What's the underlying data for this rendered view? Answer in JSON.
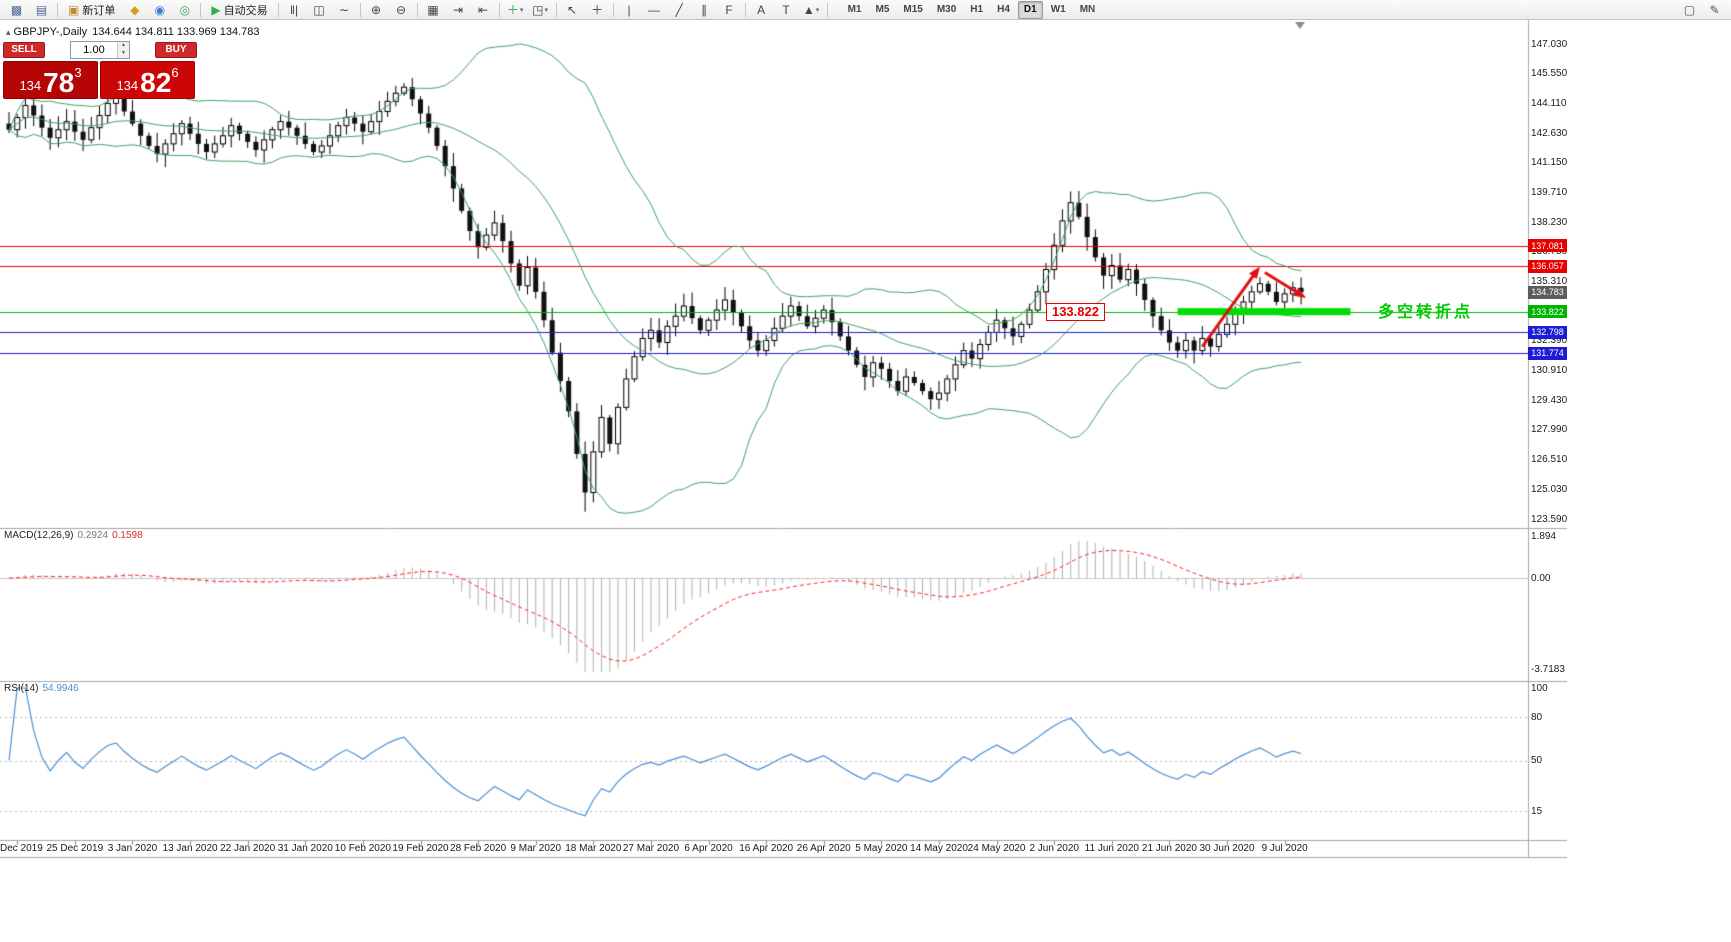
{
  "toolbar": {
    "items": [
      {
        "t": "icon",
        "name": "new-chart-icon",
        "g": "▩",
        "c": "#4a6496"
      },
      {
        "t": "icon",
        "name": "profiles-icon",
        "g": "▤",
        "c": "#4a6496"
      },
      {
        "t": "sep"
      },
      {
        "t": "button",
        "name": "new-order-button",
        "g": "▣",
        "c": "#c08a2d",
        "label": "新订单"
      },
      {
        "t": "icon",
        "name": "mql5-market-icon",
        "g": "◆",
        "c": "#d7a019"
      },
      {
        "t": "icon",
        "name": "community-icon",
        "g": "◉",
        "c": "#3a7bd5"
      },
      {
        "t": "icon",
        "name": "virtual-hosting-icon",
        "g": "◎",
        "c": "#3aa55f"
      },
      {
        "t": "sep"
      },
      {
        "t": "button",
        "name": "auto-trading-button",
        "g": "▶",
        "c": "#2fae4a",
        "label": "自动交易"
      },
      {
        "t": "sep"
      },
      {
        "t": "icon",
        "name": "bar-chart-icon",
        "g": "‖|",
        "c": "#444444"
      },
      {
        "t": "icon",
        "name": "candlestick-chart-icon",
        "g": "◫",
        "c": "#444444"
      },
      {
        "t": "icon",
        "name": "line-chart-icon",
        "g": "∼",
        "c": "#444444"
      },
      {
        "t": "sep"
      },
      {
        "t": "icon",
        "name": "zoom-in-icon",
        "g": "⊕",
        "c": "#444444"
      },
      {
        "t": "icon",
        "name": "zoom-out-icon",
        "g": "⊖",
        "c": "#444444"
      },
      {
        "t": "sep"
      },
      {
        "t": "icon",
        "name": "tile-windows-icon",
        "g": "▦",
        "c": "#444444"
      },
      {
        "t": "icon",
        "name": "auto-scroll-icon",
        "g": "⇥",
        "c": "#444444"
      },
      {
        "t": "icon",
        "name": "chart-shift-icon",
        "g": "⇤",
        "c": "#444444"
      },
      {
        "t": "sep"
      },
      {
        "t": "icon",
        "name": "indicators-icon",
        "g": "＋",
        "c": "#2fae4a",
        "dd": true
      },
      {
        "t": "icon",
        "name": "objects-icon",
        "g": "◳",
        "c": "#444444",
        "dd": true
      },
      {
        "t": "sep"
      },
      {
        "t": "icon",
        "name": "cursor-icon",
        "g": "↖",
        "c": "#444444"
      },
      {
        "t": "icon",
        "name": "crosshair-icon",
        "g": "＋",
        "c": "#444444"
      },
      {
        "t": "sep"
      },
      {
        "t": "icon",
        "name": "vertical-line-icon",
        "g": "|",
        "c": "#444444"
      },
      {
        "t": "icon",
        "name": "horizontal-line-icon",
        "g": "—",
        "c": "#444444"
      },
      {
        "t": "icon",
        "name": "trendline-icon",
        "g": "╱",
        "c": "#444444"
      },
      {
        "t": "icon",
        "name": "channel-icon",
        "g": "∥",
        "c": "#444444"
      },
      {
        "t": "icon",
        "name": "fibonacci-icon",
        "g": "F",
        "c": "#444444"
      },
      {
        "t": "sep"
      },
      {
        "t": "icon",
        "name": "text-icon",
        "g": "A",
        "c": "#444444"
      },
      {
        "t": "icon",
        "name": "label-icon",
        "g": "T",
        "c": "#444444"
      },
      {
        "t": "icon",
        "name": "arrows-icon",
        "g": "▲",
        "c": "#444444",
        "dd": true
      },
      {
        "t": "sep"
      }
    ],
    "timeframes": [
      "M1",
      "M5",
      "M15",
      "M30",
      "H1",
      "H4",
      "D1",
      "W1",
      "MN"
    ],
    "active_timeframe": "D1",
    "right_icons": [
      {
        "name": "new-window-icon",
        "g": "▢",
        "c": "#555555"
      },
      {
        "name": "edit-cursor-icon",
        "g": "✎",
        "c": "#555555"
      }
    ]
  },
  "chart": {
    "symbol_period": "GBPJPY-,Daily",
    "ohlc_line": "134.644 134.811 133.969 134.783"
  },
  "trade_panel": {
    "sell_label": "SELL",
    "buy_label": "BUY",
    "volume": "1.00",
    "sell_price": {
      "big_figure": "134",
      "pips": "78",
      "point": "3"
    },
    "buy_price": {
      "big_figure": "134",
      "pips": "82",
      "point": "6"
    }
  },
  "price_axis": {
    "labels": [
      "147.030",
      "145.550",
      "144.110",
      "142.630",
      "141.150",
      "139.710",
      "138.230",
      "136.750",
      "135.310",
      "133.870",
      "132.390",
      "130.910",
      "129.430",
      "127.990",
      "126.510",
      "125.030",
      "123.590"
    ]
  },
  "chart_data": {
    "type": "candlestick",
    "symbol": "GBPJPY-",
    "timeframe": "Daily",
    "ohlc_display": {
      "open": "134.644",
      "high": "134.811",
      "low": "133.969",
      "close": "134.783"
    },
    "y_axis": {
      "min": 123.59,
      "max": 147.03
    },
    "x_ticks": [
      {
        "label": "5 Dec 2019",
        "index": 1
      },
      {
        "label": "25 Dec 2019",
        "index": 8
      },
      {
        "label": "3 Jan 2020",
        "index": 15
      },
      {
        "label": "13 Jan 2020",
        "index": 22
      },
      {
        "label": "22 Jan 2020",
        "index": 29
      },
      {
        "label": "31 Jan 2020",
        "index": 36
      },
      {
        "label": "10 Feb 2020",
        "index": 43
      },
      {
        "label": "19 Feb 2020",
        "index": 50
      },
      {
        "label": "28 Feb 2020",
        "index": 57
      },
      {
        "label": "9 Mar 2020",
        "index": 64
      },
      {
        "label": "18 Mar 2020",
        "index": 71
      },
      {
        "label": "27 Mar 2020",
        "index": 78
      },
      {
        "label": "6 Apr 2020",
        "index": 85
      },
      {
        "label": "16 Apr 2020",
        "index": 92
      },
      {
        "label": "26 Apr 2020",
        "index": 99
      },
      {
        "label": "5 May 2020",
        "index": 106
      },
      {
        "label": "14 May 2020",
        "index": 113
      },
      {
        "label": "24 May 2020",
        "index": 120
      },
      {
        "label": "2 Jun 2020",
        "index": 127
      },
      {
        "label": "11 Jun 2020",
        "index": 134
      },
      {
        "label": "21 Jun 2020",
        "index": 141
      },
      {
        "label": "30 Jun 2020",
        "index": 148
      },
      {
        "label": "9 Jul 2020",
        "index": 155
      }
    ],
    "closes": [
      142.8,
      143.4,
      144.0,
      143.5,
      142.9,
      142.4,
      142.8,
      143.2,
      142.7,
      142.3,
      142.9,
      143.5,
      144.1,
      144.4,
      143.7,
      143.1,
      142.5,
      142.0,
      141.6,
      142.1,
      142.6,
      143.1,
      142.6,
      142.1,
      141.7,
      142.1,
      142.5,
      143.0,
      142.6,
      142.2,
      141.8,
      142.3,
      142.8,
      143.2,
      142.9,
      142.5,
      142.1,
      141.7,
      142.0,
      142.5,
      143.0,
      143.4,
      143.1,
      142.7,
      143.2,
      143.7,
      144.2,
      144.6,
      144.9,
      144.3,
      143.6,
      142.9,
      142.0,
      141.0,
      139.9,
      138.8,
      137.8,
      137.0,
      137.6,
      138.2,
      137.3,
      136.2,
      135.1,
      136.0,
      134.8,
      133.4,
      131.8,
      130.4,
      128.9,
      126.8,
      124.9,
      126.9,
      128.6,
      127.3,
      129.1,
      130.5,
      131.6,
      132.5,
      132.9,
      132.3,
      133.1,
      133.6,
      134.1,
      133.5,
      132.9,
      133.4,
      133.9,
      134.4,
      133.8,
      133.1,
      132.4,
      131.9,
      132.4,
      133.0,
      133.6,
      134.1,
      133.6,
      133.1,
      133.5,
      133.9,
      133.3,
      132.6,
      131.9,
      131.2,
      130.6,
      131.3,
      131.0,
      130.4,
      129.9,
      130.6,
      130.3,
      129.9,
      129.5,
      129.8,
      130.5,
      131.2,
      131.9,
      131.5,
      132.2,
      132.8,
      133.4,
      133.0,
      132.6,
      133.2,
      133.9,
      134.8,
      135.9,
      137.1,
      138.3,
      139.2,
      138.5,
      137.5,
      136.5,
      135.6,
      136.1,
      135.4,
      135.9,
      135.2,
      134.4,
      133.6,
      132.9,
      132.3,
      131.9,
      132.4,
      131.9,
      132.5,
      132.1,
      132.7,
      133.2,
      133.8,
      134.3,
      134.8,
      135.2,
      134.8,
      134.3,
      134.7,
      135.0,
      134.78
    ],
    "wick_overrides": {
      "13": {
        "high": 144.95
      },
      "48": {
        "high": 145.1
      },
      "70": {
        "low": 123.95
      },
      "129": {
        "high": 139.75
      }
    },
    "levels": [
      {
        "label": "137.081",
        "value": 137.081,
        "color": "#e60000",
        "line": true
      },
      {
        "label": "136.057",
        "value": 136.057,
        "color": "#e60000",
        "line": true
      },
      {
        "label": "134.783",
        "value": 134.783,
        "color": "#5c5c5c",
        "line": false
      },
      {
        "label": "133.822",
        "value": 133.822,
        "color": "#00b400",
        "line": true
      },
      {
        "label": "132.798",
        "value": 132.798,
        "color": "#1c1cd8",
        "line": true
      },
      {
        "label": "131.774",
        "value": 131.774,
        "color": "#1c1cd8",
        "line": true
      }
    ],
    "indicators": {
      "bollinger": {
        "period": 20,
        "deviation": 2,
        "color": "#3aa55f"
      },
      "macd": {
        "name": "MACD(12,26,9)",
        "main_value": "0.2924",
        "signal_value": "0.1598",
        "axis_labels": [
          "1.894",
          "0.00",
          "-3.7183"
        ],
        "hist_color": "#b0b0b0",
        "signal_color": "#ff2222"
      },
      "rsi": {
        "name": "RSI(14)",
        "value": "54.9946",
        "axis_values": [
          100,
          80,
          50,
          15
        ],
        "levels": [
          80,
          50,
          15
        ],
        "color": "#4a8fd4"
      }
    },
    "annotations": {
      "price_callout": {
        "text": "133.822",
        "index": 126,
        "price": 133.822,
        "color": "#e60000"
      },
      "turning_point": {
        "text": "多空转折点",
        "x": 1378,
        "y": 298,
        "color": "#00cc00"
      },
      "support_bar": {
        "price": 133.822,
        "start_index": 142,
        "end_index": 163,
        "color": "#00dd00"
      },
      "arrows": [
        {
          "from_index": 145,
          "from_price": 132.1,
          "to_index": 152,
          "to_price": 136.05,
          "color": "#e01010"
        },
        {
          "from_index": 152.6,
          "from_price": 135.75,
          "to_index": 157.6,
          "to_price": 134.5,
          "color": "#e01010"
        }
      ]
    }
  }
}
